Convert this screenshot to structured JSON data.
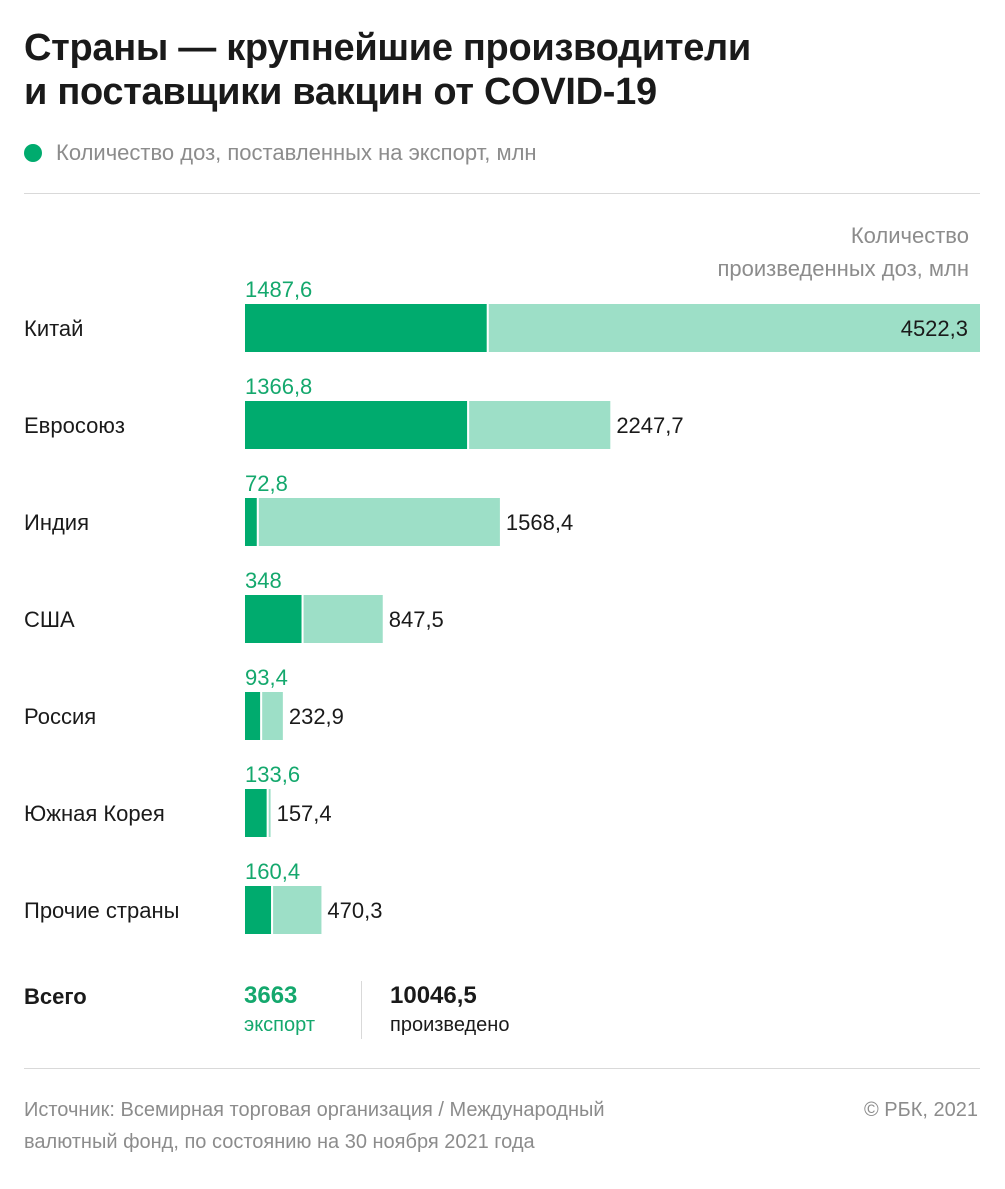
{
  "title": {
    "line1": "Страны — крупнейшие производители",
    "line2": "и поставщики вакцин от COVID-19"
  },
  "legend": {
    "export_label": "Количество доз, поставленных на экспорт, млн"
  },
  "production_note": {
    "line1": "Количество",
    "line2": "произведенных доз, млн"
  },
  "colors": {
    "export": "#00ab6e",
    "production": "#9ddfc7",
    "export_text": "#14a86d",
    "muted_text": "#8c8c8c"
  },
  "chart_data": {
    "type": "bar",
    "orientation": "horizontal",
    "categories": [
      "Китай",
      "Евросоюз",
      "Индия",
      "США",
      "Россия",
      "Южная Корея",
      "Прочие страны"
    ],
    "series": [
      {
        "values": [
          1487.6,
          1366.8,
          72.8,
          348,
          93.4,
          133.6,
          160.4
        ],
        "labels": [
          "1487,6",
          "1366,8",
          "72,8",
          "348",
          "93,4",
          "133,6",
          "160,4"
        ]
      },
      {
        "values": [
          4522.3,
          2247.7,
          1568.4,
          847.5,
          232.9,
          157.4,
          470.3
        ],
        "labels": [
          "4522,3",
          "2247,7",
          "1568,4",
          "847,5",
          "232,9",
          "157,4",
          "470,3"
        ]
      }
    ],
    "overlay": true,
    "xlim": [
      0,
      4522.3
    ],
    "grid": false
  },
  "totals": {
    "label": "Всего",
    "export_value": "3663",
    "export_caption": "экспорт",
    "production_value": "10046,5",
    "production_caption": "произведено"
  },
  "source": {
    "line1": "Источник: Всемирная торговая организация / Международный",
    "line2": "валютный фонд, по состоянию на 30 ноября 2021 года"
  },
  "copyright": "© РБК, 2021"
}
